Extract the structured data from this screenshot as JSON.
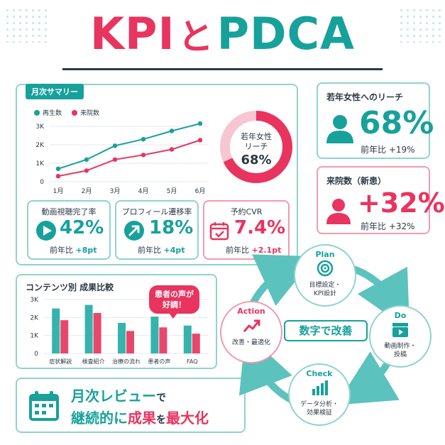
{
  "title": {
    "kpi": "KPI",
    "to": "と",
    "pdca": "PDCA"
  },
  "monthly": {
    "tag": "月次サマリー",
    "donut_label_1": "若年女性",
    "donut_label_2": "リーチ",
    "donut_value": "68%",
    "donut_fraction": 0.68
  },
  "chart_data": [
    {
      "type": "line",
      "categories": [
        "1月",
        "2月",
        "3月",
        "4月",
        "5月",
        "6月"
      ],
      "series": [
        {
          "name": "再生数",
          "values": [
            700,
            1200,
            1950,
            2300,
            2750,
            3150
          ]
        },
        {
          "name": "来院数",
          "values": [
            300,
            600,
            1200,
            1450,
            1750,
            2250
          ]
        }
      ],
      "y_ticks": [
        "0",
        "1K",
        "2K",
        "3K"
      ],
      "ylim": [
        0,
        3000
      ],
      "colors": [
        "#17a19b",
        "#e8345f"
      ],
      "legend": "top-left"
    },
    {
      "type": "bar",
      "title": "コンテンツ別 成果比較",
      "categories": [
        "症状解説",
        "検査紹介",
        "治療の流れ",
        "患者の声",
        "FAQ"
      ],
      "series": [
        {
          "values": [
            2500,
            2700,
            1700,
            2050,
            1550
          ]
        },
        {
          "values": [
            1850,
            2250,
            1250,
            1450,
            1100
          ]
        }
      ],
      "y_ticks": [
        "0",
        "1K",
        "2K",
        "3K"
      ],
      "ylim": [
        0,
        3000
      ],
      "colors": [
        "#36b3ad",
        "#e8476c"
      ]
    }
  ],
  "kpis": [
    {
      "title": "動画視聴完了率",
      "value": "42%",
      "sub_label": "前年比",
      "sub_value": "+8pt",
      "icon": "play-icon"
    },
    {
      "title": "プロフィール遷移率",
      "value": "18%",
      "sub_label": "前年比",
      "sub_value": "+4pt",
      "icon": "arrow-up-right-icon"
    },
    {
      "title": "予約CVR",
      "value": "7.4%",
      "sub_label": "前年比",
      "sub_value": "+2.1pt",
      "icon": "calendar-check-icon"
    }
  ],
  "reach": {
    "title": "若年女性へのリーチ",
    "value": "68%",
    "sub": "前年比 +19%",
    "icon": "person-icon"
  },
  "visits": {
    "title": "来院数（新患）",
    "value": "+32%",
    "sub": "前年比 +32%",
    "icon": "person-icon"
  },
  "bubble": {
    "line1": "患者の声が",
    "line2": "好調！"
  },
  "cycle": {
    "center": "数字で改善",
    "plan": {
      "title": "Plan",
      "line1": "目標設定・",
      "line2": "KPI設計"
    },
    "do": {
      "title": "Do",
      "line1": "動画制作・",
      "line2": "投稿"
    },
    "check": {
      "title": "Check",
      "line1": "データ分析・",
      "line2": "効果検証"
    },
    "action": {
      "title": "Action",
      "line1": "改善・最適化"
    }
  },
  "review": {
    "line1_a": "月次レビュー",
    "line1_b": "で",
    "line2_a": "継続的に",
    "line2_b": "成果",
    "line2_c": "を",
    "line2_d": "最大化"
  }
}
